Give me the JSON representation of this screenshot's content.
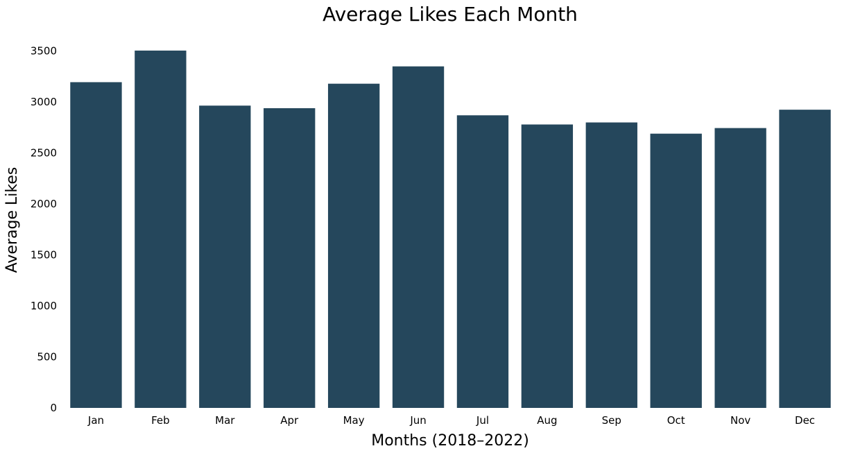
{
  "chart_data": {
    "type": "bar",
    "title": "Average Likes Each Month",
    "xlabel": "Months (2018–2022)",
    "ylabel": "Average Likes",
    "categories": [
      "Jan",
      "Feb",
      "Mar",
      "Apr",
      "May",
      "Jun",
      "Jul",
      "Aug",
      "Sep",
      "Oct",
      "Nov",
      "Dec"
    ],
    "values": [
      3195,
      3505,
      2965,
      2940,
      3180,
      3350,
      2870,
      2780,
      2800,
      2690,
      2745,
      2925
    ],
    "ylim": [
      0,
      3620
    ],
    "yticks": [
      0,
      500,
      1000,
      1500,
      2000,
      2500,
      3000,
      3500
    ],
    "grid": false,
    "legend": "none",
    "bar_color": "#25475c"
  }
}
